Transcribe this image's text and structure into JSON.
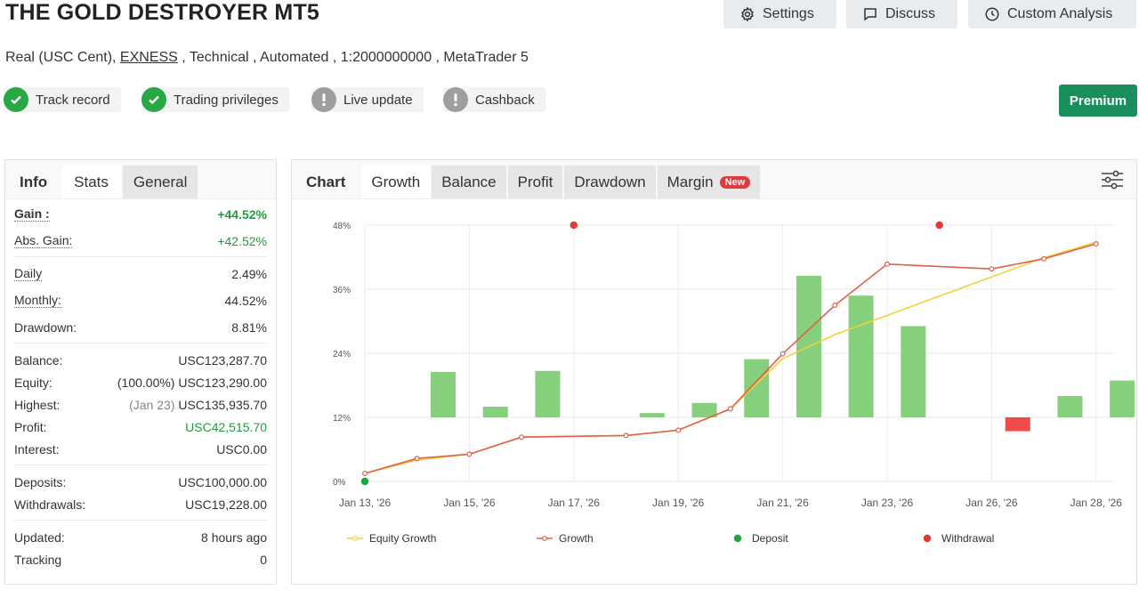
{
  "header": {
    "title": "THE GOLD DESTROYER MT5",
    "subtitle_pre": "Real (USC Cent), ",
    "broker": "EXNESS",
    "subtitle_post": " , Technical , Automated , 1:2000000000 , MetaTrader 5",
    "buttons": {
      "settings": "Settings",
      "discuss": "Discuss",
      "custom_analysis": "Custom Analysis"
    },
    "premium": "Premium"
  },
  "badges": [
    {
      "label": "Track record",
      "status": "ok"
    },
    {
      "label": "Trading privileges",
      "status": "ok"
    },
    {
      "label": "Live update",
      "status": "warn"
    },
    {
      "label": "Cashback",
      "status": "warn"
    }
  ],
  "left_tabs": {
    "info": "Info",
    "stats": "Stats",
    "general": "General"
  },
  "stats": {
    "gain": {
      "label": "Gain :",
      "value": "+44.52%"
    },
    "abs_gain": {
      "label": "Abs. Gain:",
      "value": "+42.52%"
    },
    "daily": {
      "label": "Daily",
      "value": "2.49%"
    },
    "monthly": {
      "label": "Monthly:",
      "value": "44.52%"
    },
    "drawdown": {
      "label": "Drawdown:",
      "value": "8.81%"
    },
    "balance": {
      "label": "Balance:",
      "value": "USC123,287.70"
    },
    "equity": {
      "label": "Equity:",
      "prefix": "(100.00%)",
      "value": "USC123,290.00"
    },
    "highest": {
      "label": "Highest:",
      "prefix": "(Jan 23)",
      "value": "USC135,935.70"
    },
    "profit": {
      "label": "Profit:",
      "value": "USC42,515.70"
    },
    "interest": {
      "label": "Interest:",
      "value": "USC0.00"
    },
    "deposits": {
      "label": "Deposits:",
      "value": "USC100,000.00"
    },
    "withdrawals": {
      "label": "Withdrawals:",
      "value": "USC19,228.00"
    },
    "updated": {
      "label": "Updated:",
      "value": "8 hours ago"
    },
    "tracking": {
      "label": "Tracking",
      "value": "0"
    }
  },
  "chart_tabs": {
    "chart": "Chart",
    "growth": "Growth",
    "balance": "Balance",
    "profit": "Profit",
    "drawdown": "Drawdown",
    "margin": "Margin",
    "new_badge": "New"
  },
  "colors": {
    "green": "#28a745",
    "premium": "#1a8f5c",
    "bar_pos": "#86cf7c",
    "bar_neg": "#f24b4b",
    "growth_line": "#e0614a",
    "equity_line": "#f2d13a",
    "deposit": "#18a83b",
    "withdrawal": "#e53935"
  },
  "chart_data": {
    "type": "bar+line",
    "y_ticks": [
      "0%",
      "12%",
      "24%",
      "36%",
      "48%"
    ],
    "ylim": [
      0,
      48
    ],
    "x_tick_labels": [
      "Jan 13, '26",
      "Jan 15, '26",
      "Jan 17, '26",
      "Jan 19, '26",
      "Jan 21, '26",
      "Jan 23, '26",
      "Jan 26, '26",
      "Jan 28, '26"
    ],
    "legend": [
      "Equity Growth",
      "Growth",
      "Deposit",
      "Withdrawal"
    ],
    "bars": [
      {
        "x": 1.5,
        "value": 8.5
      },
      {
        "x": 2.5,
        "value": 2.0
      },
      {
        "x": 3.5,
        "value": 8.7
      },
      {
        "x": 5.5,
        "value": 0.8
      },
      {
        "x": 6.5,
        "value": 2.7
      },
      {
        "x": 7.5,
        "value": 10.9
      },
      {
        "x": 8.5,
        "value": 26.5
      },
      {
        "x": 9.5,
        "value": 22.8
      },
      {
        "x": 10.5,
        "value": 17.1
      },
      {
        "x": 12.5,
        "value": -2.6
      },
      {
        "x": 13.5,
        "value": 4.0
      },
      {
        "x": 14.5,
        "value": 6.9
      }
    ],
    "growth": [
      {
        "x": 0,
        "y": 1.5
      },
      {
        "x": 1,
        "y": 4.3
      },
      {
        "x": 2,
        "y": 5.1
      },
      {
        "x": 3,
        "y": 8.3
      },
      {
        "x": 5,
        "y": 8.6
      },
      {
        "x": 6,
        "y": 9.6
      },
      {
        "x": 7,
        "y": 13.6
      },
      {
        "x": 8,
        "y": 23.9
      },
      {
        "x": 9,
        "y": 33.0
      },
      {
        "x": 10,
        "y": 40.7
      },
      {
        "x": 12,
        "y": 39.8
      },
      {
        "x": 13,
        "y": 41.7
      },
      {
        "x": 14,
        "y": 44.5
      }
    ],
    "equity_growth": [
      {
        "x": 0,
        "y": 1.5
      },
      {
        "x": 1,
        "y": 4.0
      },
      {
        "x": 2,
        "y": 5.1
      },
      {
        "x": 3,
        "y": 8.3
      },
      {
        "x": 5,
        "y": 8.6
      },
      {
        "x": 6,
        "y": 9.6
      },
      {
        "x": 7,
        "y": 13.6
      },
      {
        "x": 8,
        "y": 23.0
      },
      {
        "x": 9,
        "y": 27.5
      },
      {
        "x": 13,
        "y": 41.9
      },
      {
        "x": 14,
        "y": 44.8
      }
    ],
    "deposits": [
      {
        "x": 0,
        "y": 0
      }
    ],
    "withdrawals": [
      {
        "x": 4,
        "y": 48
      },
      {
        "x": 11,
        "y": 48
      }
    ]
  }
}
